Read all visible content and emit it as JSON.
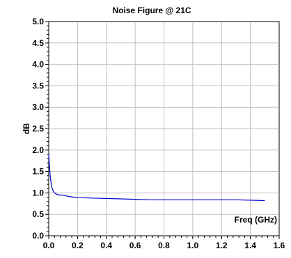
{
  "chart_data": {
    "type": "line",
    "title": "Noise Figure @ 21C",
    "xlabel": "Freq (GHz)",
    "ylabel": "dB",
    "xlim": [
      0.0,
      1.6
    ],
    "ylim": [
      0.0,
      5.0
    ],
    "x_ticks": [
      "0.0",
      "0.2",
      "0.4",
      "0.6",
      "0.8",
      "1.0",
      "1.2",
      "1.4",
      "1.6"
    ],
    "y_ticks": [
      "0.0",
      "0.5",
      "1.0",
      "1.5",
      "2.0",
      "2.5",
      "3.0",
      "3.5",
      "4.0",
      "4.5",
      "5.0"
    ],
    "grid": true,
    "line_color": "#0000cc",
    "series": [
      {
        "x": [
          0.0,
          0.01,
          0.02,
          0.03,
          0.04,
          0.05,
          0.06,
          0.08,
          0.1,
          0.12,
          0.15,
          0.2,
          0.3,
          0.4,
          0.5,
          0.6,
          0.7,
          0.8,
          0.9,
          1.0,
          1.1,
          1.2,
          1.3,
          1.4,
          1.5
        ],
        "y": [
          1.9,
          1.4,
          1.15,
          1.05,
          1.0,
          0.98,
          0.96,
          0.95,
          0.95,
          0.93,
          0.91,
          0.89,
          0.88,
          0.87,
          0.86,
          0.85,
          0.84,
          0.84,
          0.84,
          0.84,
          0.84,
          0.84,
          0.84,
          0.83,
          0.82
        ]
      }
    ]
  }
}
